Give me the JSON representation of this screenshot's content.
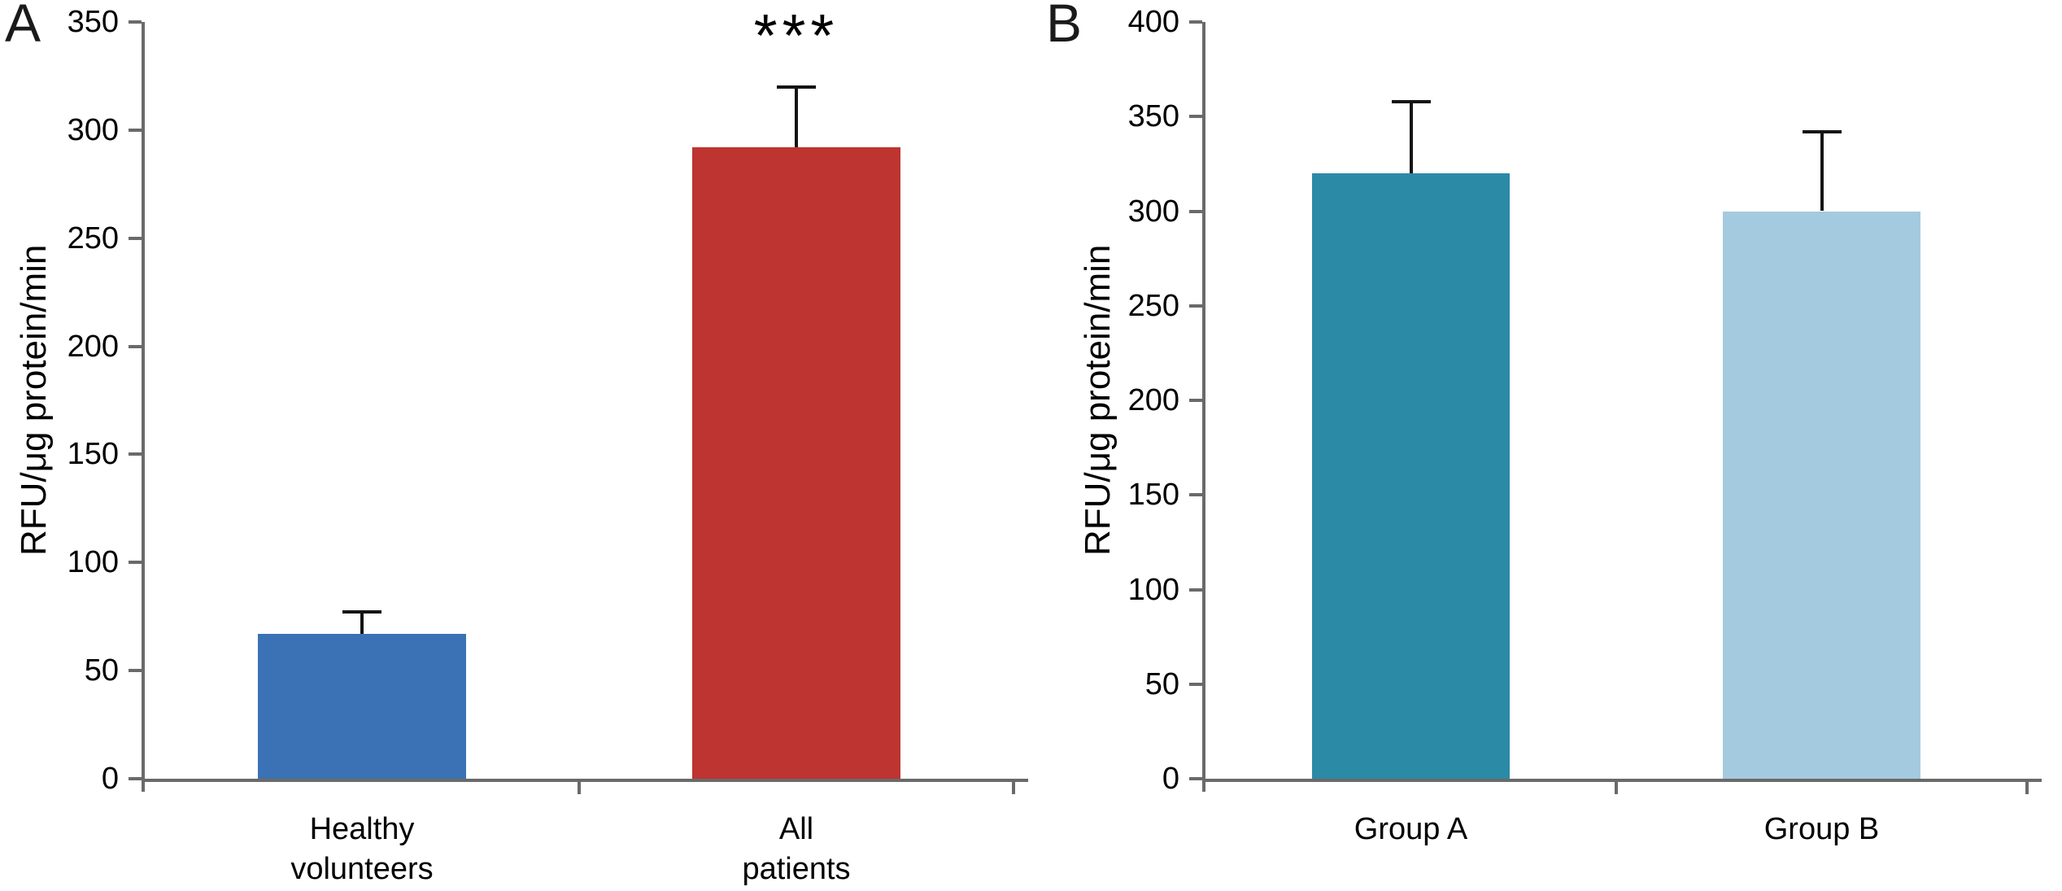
{
  "figure": {
    "background": "#ffffff",
    "axis_color": "#6a6a6a",
    "error_bar_color": "#141414",
    "text_color": "#000000"
  },
  "chart_data": [
    {
      "type": "bar",
      "panel_label": "A",
      "title": "",
      "ylabel": "RFU/μg protein/min",
      "xlabel": "",
      "ylim": [
        0,
        350
      ],
      "ytick_step": 50,
      "grid": false,
      "legend": false,
      "categories": [
        "Healthy\nvolunteers",
        "All\npatients"
      ],
      "values": [
        67,
        292
      ],
      "errors_plus": [
        10,
        28
      ],
      "bar_colors": [
        "#3a72b5",
        "#bd3430"
      ],
      "annotations": [
        {
          "bar_index": 1,
          "text": "***"
        }
      ]
    },
    {
      "type": "bar",
      "panel_label": "B",
      "title": "",
      "ylabel": "RFU/μg protein/min",
      "xlabel": "",
      "ylim": [
        0,
        400
      ],
      "ytick_step": 50,
      "grid": false,
      "legend": false,
      "categories": [
        "Group A",
        "Group B"
      ],
      "values": [
        320,
        300
      ],
      "errors_plus": [
        38,
        42
      ],
      "bar_colors": [
        "#2b8aa5",
        "#a4cadf"
      ],
      "annotations": []
    }
  ]
}
